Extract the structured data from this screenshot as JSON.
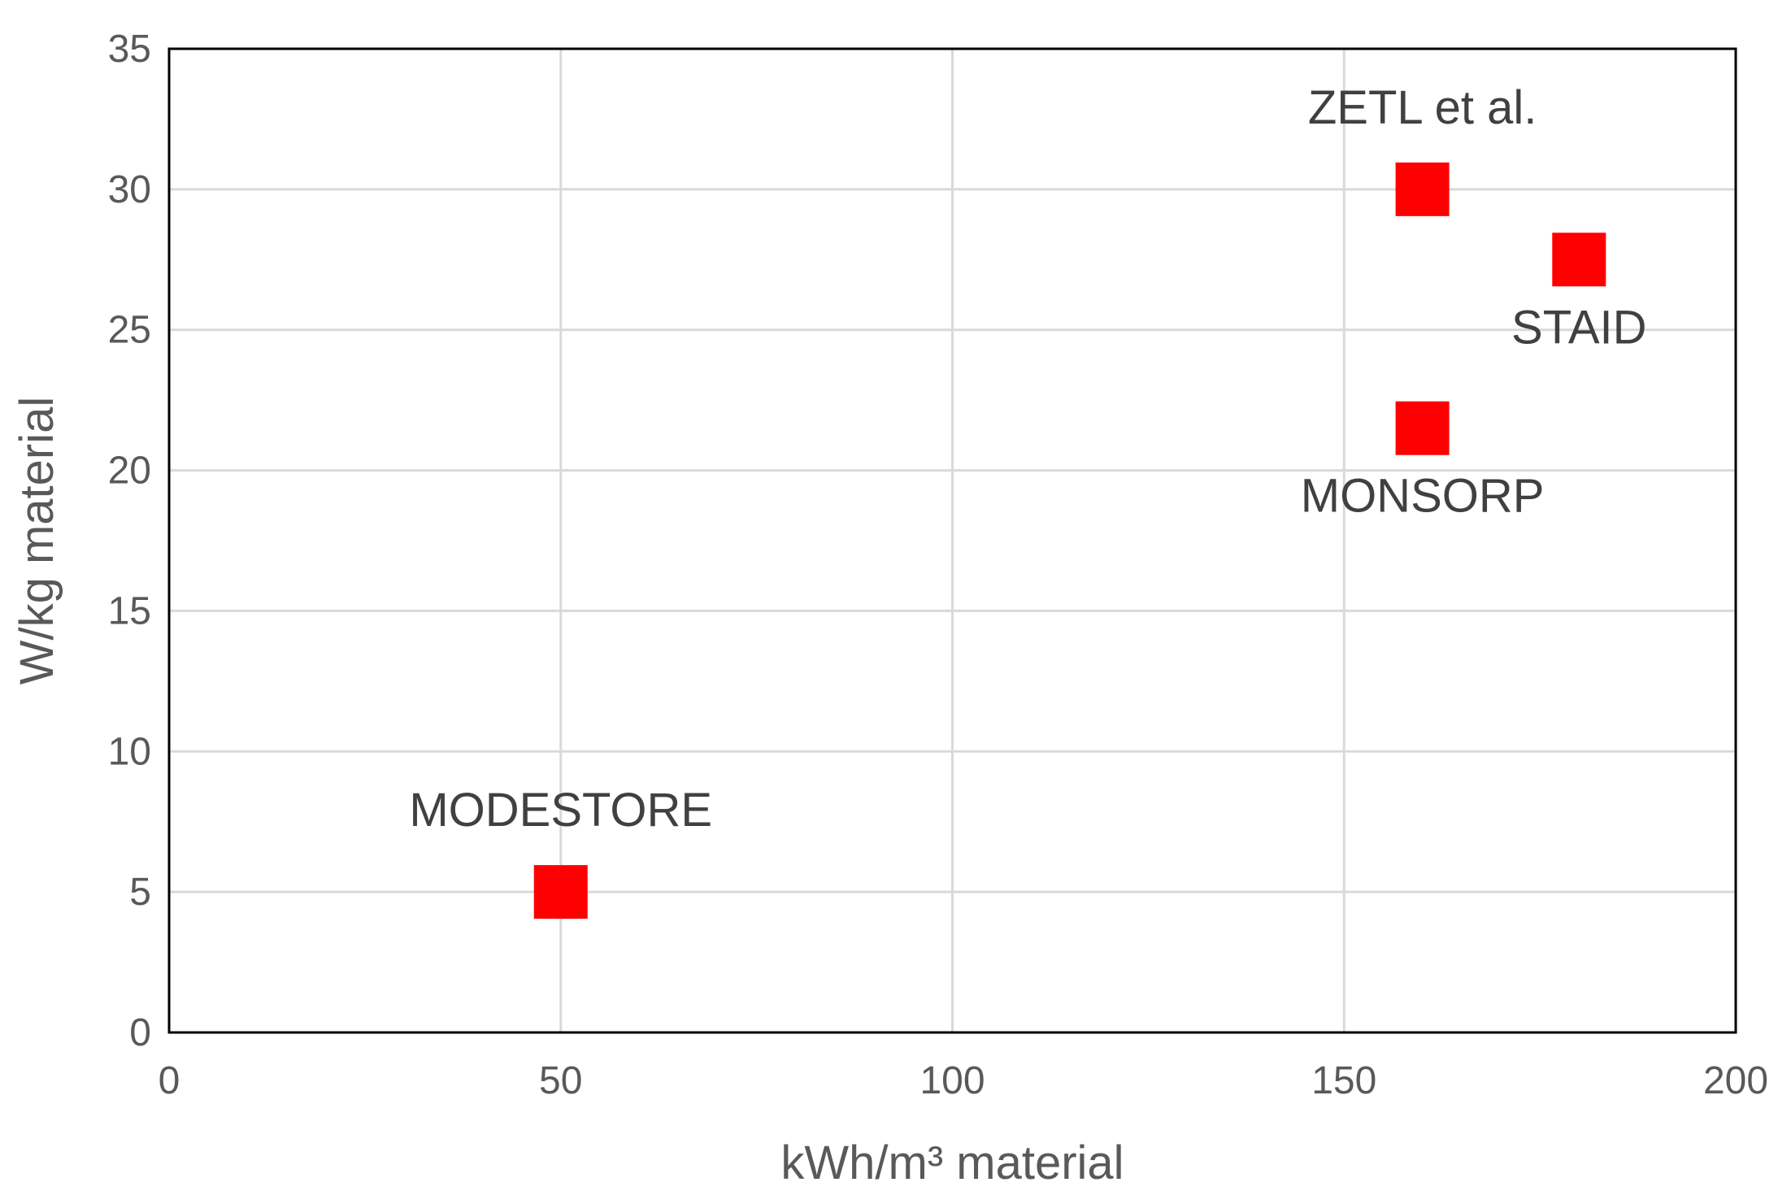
{
  "chart_data": {
    "type": "scatter",
    "title": "",
    "xlabel": "kWh/m³ material",
    "ylabel": "W/kg material",
    "xlim": [
      0,
      200
    ],
    "ylim": [
      0,
      35
    ],
    "x_ticks": [
      "0",
      "50",
      "100",
      "150",
      "200"
    ],
    "y_ticks": [
      "0",
      "5",
      "10",
      "15",
      "20",
      "25",
      "30",
      "35"
    ],
    "grid": true,
    "marker": "square",
    "colors": {
      "marker": "#ff0000",
      "grid": "#d9d9d9",
      "frame": "#000000",
      "text": "#595959",
      "label_text": "#404040"
    },
    "points": [
      {
        "label": "MODESTORE",
        "x": 50,
        "y": 5,
        "label_position": "above"
      },
      {
        "label": "ZETL et al.",
        "x": 160,
        "y": 30,
        "label_position": "above"
      },
      {
        "label": "STAID",
        "x": 180,
        "y": 27.5,
        "label_position": "below"
      },
      {
        "label": "MONSORP",
        "x": 160,
        "y": 21.5,
        "label_position": "below"
      }
    ]
  }
}
